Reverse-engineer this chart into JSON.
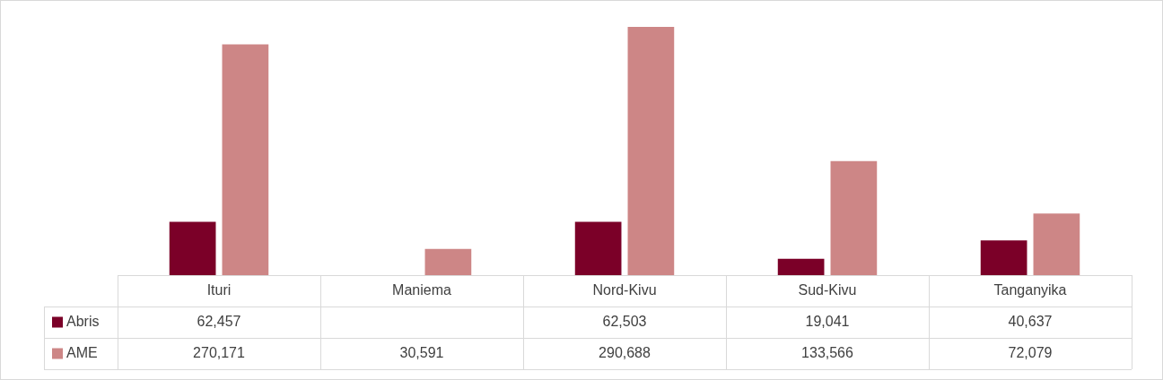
{
  "chart_data": {
    "type": "bar",
    "categories": [
      "Ituri",
      "Maniema",
      "Nord-Kivu",
      "Sud-Kivu",
      "Tanganyika"
    ],
    "series": [
      {
        "name": "Abris",
        "color": "#7b0028",
        "values": [
          62457,
          null,
          62503,
          19041,
          40637
        ],
        "value_labels": [
          "62,457",
          null,
          "62,503",
          "19,041",
          "40,637"
        ]
      },
      {
        "name": "AME",
        "color": "#cd8686",
        "values": [
          270171,
          30591,
          290688,
          133566,
          72079
        ],
        "value_labels": [
          "270,171",
          "30,591",
          "290,688",
          "133,566",
          "72,079"
        ]
      }
    ],
    "legend": "bottom"
  }
}
